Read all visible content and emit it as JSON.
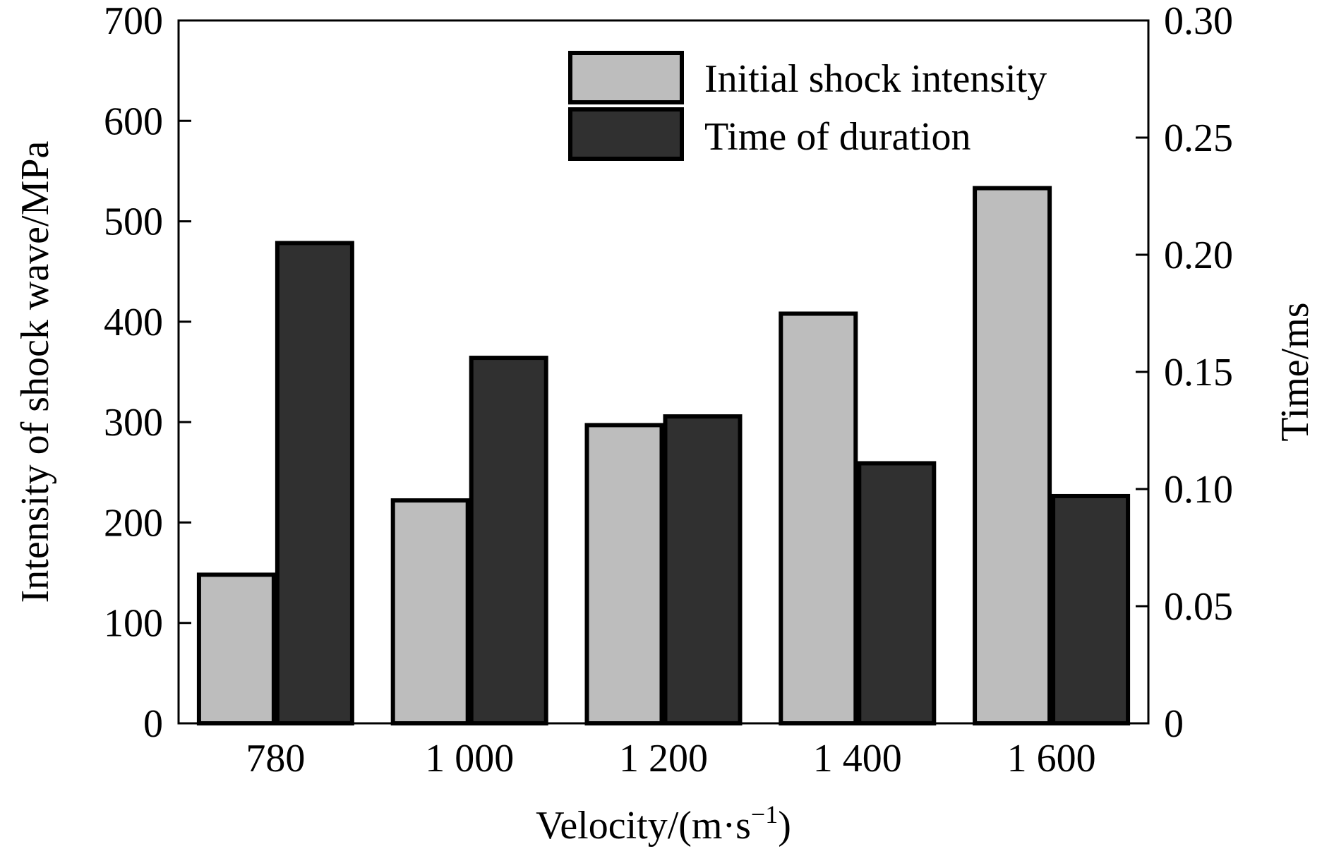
{
  "chart_data": {
    "type": "bar",
    "categories": [
      "780",
      "1 000",
      "1 200",
      "1 400",
      "1 600"
    ],
    "xlabel": "Velocity/(m·s",
    "xlabel_sup": "−1",
    "xlabel_tail": ")",
    "ylabel": "Intensity of shock wave/MPa",
    "y2label": "Time/ms",
    "ylim": [
      0,
      700
    ],
    "y2lim": [
      0,
      0.3
    ],
    "yticks": [
      "0",
      "100",
      "200",
      "300",
      "400",
      "500",
      "600",
      "700"
    ],
    "y2ticks": [
      "0",
      "0.05",
      "0.10",
      "0.15",
      "0.20",
      "0.25",
      "0.30"
    ],
    "legend_position": "top-right",
    "series": [
      {
        "name": "Initial shock intensity",
        "axis": "left",
        "color": "#bdbdbd",
        "values": [
          148,
          222,
          297,
          408,
          533
        ]
      },
      {
        "name": "Time of duration",
        "axis": "right",
        "color": "#303030",
        "values": [
          0.205,
          0.156,
          0.131,
          0.111,
          0.097
        ]
      }
    ]
  }
}
